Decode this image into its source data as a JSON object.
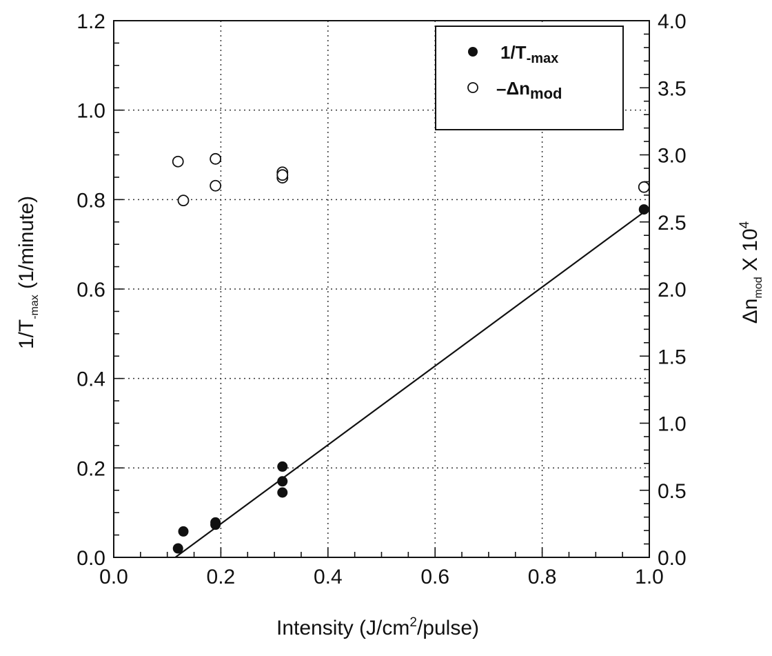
{
  "chart_data": {
    "type": "scatter",
    "xlabel": {
      "base": "Intensity (J/cm",
      "sup": "2",
      "tail": "/pulse)"
    },
    "ylabel_left": {
      "base": "1/T",
      "sub": "-max",
      "tail": " (1/minute)"
    },
    "ylabel_right": {
      "base": "Δn",
      "sub": "mod",
      "mid": " X 10",
      "sup": "4"
    },
    "xlim": [
      0.0,
      1.0
    ],
    "ylim_left": [
      0.0,
      1.2
    ],
    "ylim_right": [
      0.0,
      4.0
    ],
    "x_ticks": [
      "0.0",
      "0.2",
      "0.4",
      "0.6",
      "0.8",
      "1.0"
    ],
    "y_ticks_left": [
      "0.0",
      "0.2",
      "0.4",
      "0.6",
      "0.8",
      "1.0",
      "1.2"
    ],
    "y_ticks_right": [
      "0.0",
      "0.5",
      "1.0",
      "1.5",
      "2.0",
      "2.5",
      "3.0",
      "3.5",
      "4.0"
    ],
    "grid": true,
    "legend": {
      "placement": "top-right",
      "entries": [
        {
          "base": "1/T",
          "sub": "-max",
          "marker": "filled-circle"
        },
        {
          "base": "–Δn",
          "sub": "mod",
          "marker": "open-circle"
        }
      ]
    },
    "series": [
      {
        "name": "1/T-max",
        "axis": "left",
        "marker": "filled-circle",
        "x": [
          0.12,
          0.13,
          0.19,
          0.19,
          0.315,
          0.315,
          0.315,
          0.99
        ],
        "y": [
          0.02,
          0.058,
          0.073,
          0.078,
          0.203,
          0.17,
          0.145,
          0.778
        ]
      },
      {
        "name": "–Δnmod",
        "axis": "right",
        "marker": "open-circle",
        "x": [
          0.12,
          0.13,
          0.19,
          0.19,
          0.315,
          0.315,
          0.315,
          0.99
        ],
        "y": [
          2.95,
          2.66,
          2.97,
          2.77,
          2.87,
          2.83,
          2.85,
          2.76
        ]
      }
    ],
    "fit_line": {
      "axis": "left",
      "x": [
        0.115,
        0.99
      ],
      "y": [
        0.0,
        0.772
      ]
    }
  }
}
